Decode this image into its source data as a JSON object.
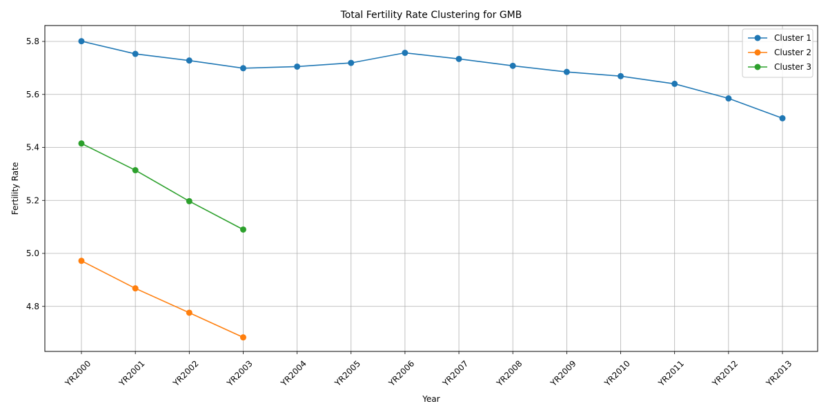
{
  "chart_data": {
    "type": "line",
    "title": "Total Fertility Rate Clustering for GMB",
    "xlabel": "Year",
    "ylabel": "Fertility Rate",
    "categories": [
      "YR2000",
      "YR2001",
      "YR2002",
      "YR2003",
      "YR2004",
      "YR2005",
      "YR2006",
      "YR2007",
      "YR2008",
      "YR2009",
      "YR2010",
      "YR2011",
      "YR2012",
      "YR2013"
    ],
    "ylim": [
      4.63,
      5.86
    ],
    "yticks": [
      4.8,
      5.0,
      5.2,
      5.4,
      5.6,
      5.8
    ],
    "ytick_labels": [
      "4.8",
      "5.0",
      "5.2",
      "5.4",
      "5.6",
      "5.8"
    ],
    "grid": true,
    "legend_position": "top-right",
    "series": [
      {
        "name": "Cluster 1",
        "color": "#1f77b4",
        "values": [
          5.801,
          5.753,
          5.728,
          5.699,
          5.705,
          5.719,
          5.757,
          5.734,
          5.708,
          5.685,
          5.669,
          5.64,
          5.585,
          5.51
        ]
      },
      {
        "name": "Cluster 2",
        "color": "#ff7f0e",
        "values": [
          4.972,
          4.868,
          4.776,
          4.683,
          null,
          null,
          null,
          null,
          null,
          null,
          null,
          null,
          null,
          null
        ]
      },
      {
        "name": "Cluster 3",
        "color": "#2ca02c",
        "values": [
          5.415,
          5.314,
          5.197,
          5.09,
          null,
          null,
          null,
          null,
          null,
          null,
          null,
          null,
          null,
          null
        ]
      }
    ]
  }
}
